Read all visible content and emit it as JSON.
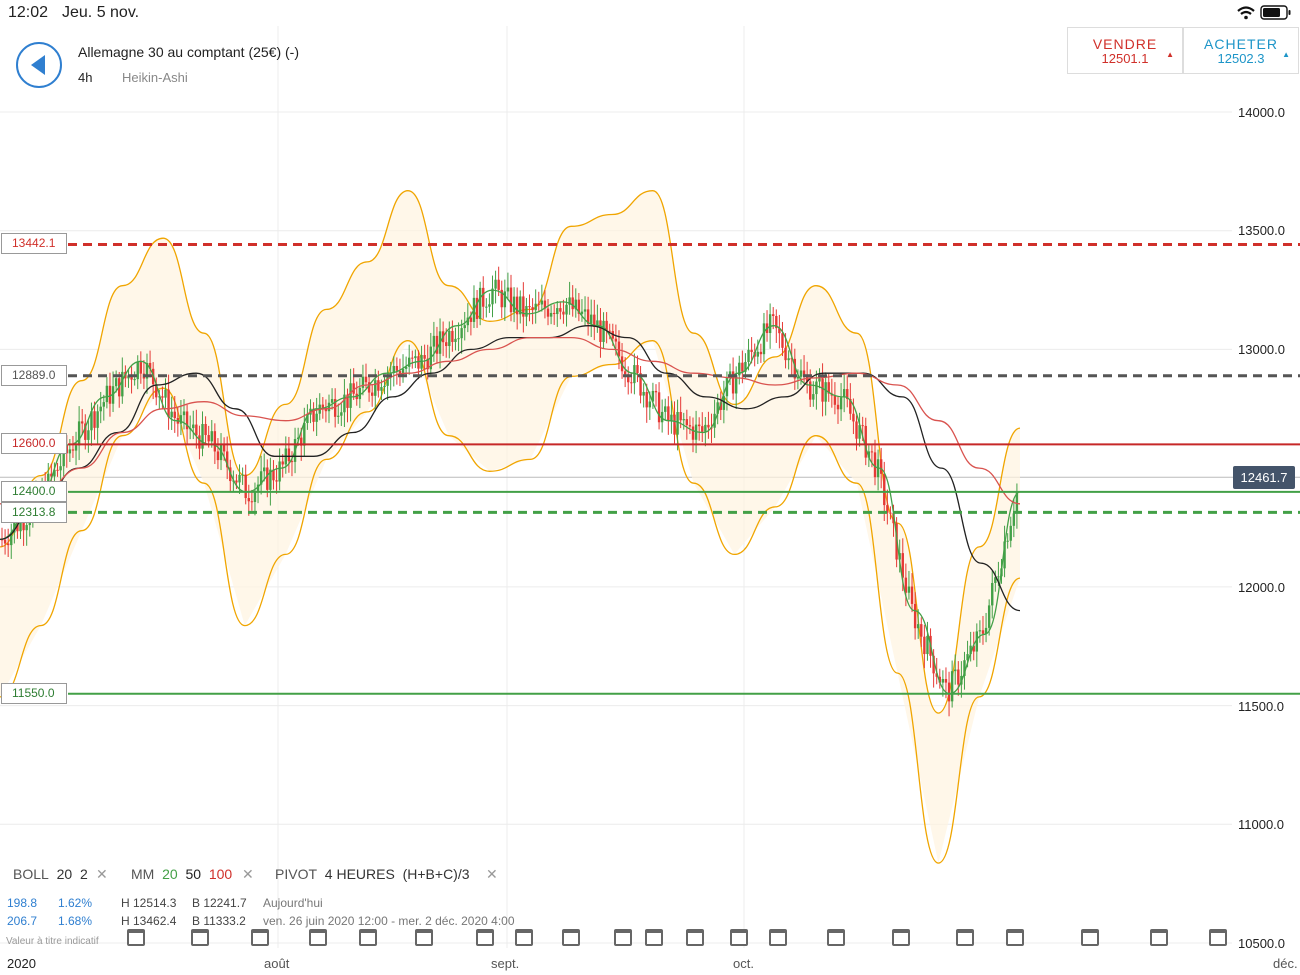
{
  "status": {
    "time": "12:02",
    "date": "Jeu. 5 nov."
  },
  "header": {
    "back_icon": "chevron-left-icon",
    "title": "Allemagne 30 au comptant (25€) (-)",
    "timeframe": "4h",
    "chart_type": "Heikin-Ashi"
  },
  "sell": {
    "label": "VENDRE",
    "price": "12501.1",
    "arrow": "▲",
    "color": "#d0302a"
  },
  "buy": {
    "label": "ACHETER",
    "price": "12502.3",
    "arrow": "▲",
    "color": "#1d95c8"
  },
  "price_axis": [
    "14000.0",
    "13500.0",
    "13000.0",
    "12000.0",
    "11500.0",
    "11000.0",
    "10500.0"
  ],
  "live_price": "12461.7",
  "live_price_hidden": "12501.1",
  "levels": [
    {
      "label": "13442.1",
      "value": 13442.1,
      "style": "dashed",
      "color": "#d0302a"
    },
    {
      "label": "12889.0",
      "value": 12889.0,
      "style": "dashed",
      "color": "#555555"
    },
    {
      "label": "12600.0",
      "value": 12600.0,
      "style": "solid",
      "color": "#c62828"
    },
    {
      "label": "12400.0",
      "value": 12400.0,
      "style": "solid",
      "color": "#43a047"
    },
    {
      "label": "12313.8",
      "value": 12313.8,
      "style": "dashed",
      "color": "#43a047"
    },
    {
      "label": "11550.0",
      "value": 11550.0,
      "style": "solid",
      "color": "#43a047"
    }
  ],
  "indicators": {
    "boll": {
      "name": "BOLL",
      "p1": "20",
      "p2": "2"
    },
    "mm": {
      "name": "MM",
      "p1": "20",
      "p2": "50",
      "p3": "100"
    },
    "pivot": {
      "name": "PIVOT",
      "p1": "4 HEURES",
      "p2": "(H+B+C)/3"
    },
    "close": "✕"
  },
  "stats": [
    {
      "v1": "198.8",
      "v2": "1.62%",
      "h": "H 12514.3",
      "b": "B 12241.7",
      "period": "Aujourd'hui"
    },
    {
      "v1": "206.7",
      "v2": "1.68%",
      "h": "H 13462.4",
      "b": "B 11333.2",
      "period": "ven. 26 juin 2020 12:00 - mer. 2 déc. 2020 4:00"
    }
  ],
  "footnote": "Valeur à titre indicatif",
  "x_axis": [
    "2020",
    "août",
    "sept.",
    "oct.",
    "déc."
  ],
  "chart_data": {
    "type": "line",
    "title": "Allemagne 30 au comptant (25€) (-)",
    "timeframe": "4h",
    "candle_style": "Heikin-Ashi",
    "x_labels": [
      "2020",
      "août",
      "sept.",
      "oct.",
      "déc."
    ],
    "ylim": [
      10500,
      14000
    ],
    "y_ticks": [
      14000,
      13500,
      13000,
      12000,
      11500,
      11000,
      10500
    ],
    "horizontal_levels": [
      13442.1,
      12889.0,
      12600.0,
      12400.0,
      12313.8,
      11550.0
    ],
    "last_price": 12461.7,
    "series": [
      {
        "name": "MM 20",
        "color": "#43a047",
        "values": [
          12200,
          12350,
          12600,
          12800,
          12950,
          12700,
          12600,
          12400,
          12500,
          12750,
          12800,
          12900,
          12950,
          13100,
          13250,
          13150,
          13200,
          13100,
          12900,
          12700,
          12650,
          12900,
          13100,
          12850,
          12800,
          12500,
          11900,
          11550,
          11800,
          12400
        ]
      },
      {
        "name": "MM 50",
        "color": "#222222",
        "values": [
          12200,
          12350,
          12500,
          12650,
          12850,
          12900,
          12750,
          12550,
          12550,
          12650,
          12800,
          12900,
          13000,
          13050,
          13050,
          13100,
          13050,
          12900,
          12800,
          12750,
          12800,
          12900,
          12900,
          12800,
          12500,
          12100,
          11900
        ]
      },
      {
        "name": "MM 100",
        "color": "#d9534f",
        "values": [
          12350,
          12400,
          12500,
          12650,
          12750,
          12780,
          12720,
          12700,
          12750,
          12850,
          12900,
          12950,
          13000,
          13050,
          13050,
          13000,
          12950,
          12900,
          12880,
          12850,
          12880,
          12900,
          12850,
          12700,
          12500,
          12350
        ]
      },
      {
        "name": "BOLL 20 2",
        "color": "#f0a500",
        "values": [
          12000,
          12300,
          12700,
          13100,
          13300,
          12900,
          12300,
          12600,
          13000,
          13200,
          13500,
          13100,
          12950,
          13000,
          13350,
          13400,
          13500,
          12900,
          12600,
          12800,
          13100,
          12900,
          12100,
          11300,
          12000,
          12500
        ]
      }
    ]
  }
}
